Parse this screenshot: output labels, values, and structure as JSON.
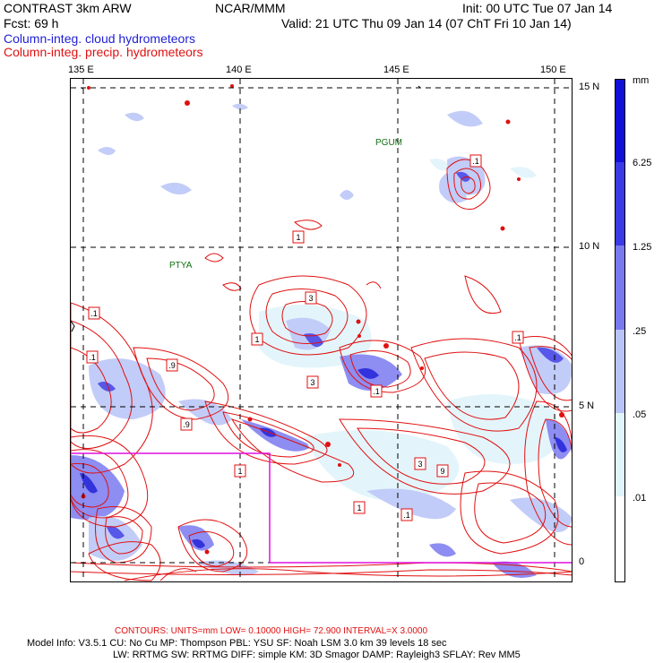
{
  "header": {
    "model": "CONTRAST  3km ARW",
    "center": "NCAR/MMM",
    "init": "Init: 00 UTC Tue 07 Jan 14",
    "fcst": "Fcst:   69 h",
    "valid": "Valid: 21 UTC Thu 09 Jan 14 (07 ChT Fri 10 Jan 14)",
    "field1": "Column-integ. cloud hydrometeors",
    "field2": "Column-integ. precip. hydrometeors"
  },
  "axes": {
    "lon_labels": [
      "135 E",
      "140 E",
      "145 E",
      "150 E"
    ],
    "lat_labels": [
      "15 N",
      "10 N",
      "5 N",
      "0"
    ]
  },
  "places": [
    {
      "name": "PGUM"
    },
    {
      "name": "PTYA"
    }
  ],
  "colorbar": {
    "unit": "mm",
    "levels": [
      "6.25",
      "1.25",
      ".25",
      ".05",
      ".01"
    ],
    "colors": [
      "#1010d8",
      "#3a3ae6",
      "#7a7af0",
      "#b8c4f7",
      "#dff4fb",
      "#ffffff"
    ]
  },
  "contour_labels": [
    ".1",
    "1",
    "3",
    ".9",
    ".1",
    "1",
    "3",
    ".9",
    "1",
    ".1",
    ".1",
    "3",
    "9",
    ".1",
    ".1",
    "1"
  ],
  "footer": {
    "contours": "CONTOURS:  UNITS=mm  LOW=  0.10000      HIGH=  72.900      INTERVAL=X  3.0000",
    "info1": "Model Info: V3.5.1     CU: No Cu       MP: Thompson     PBL: YSU        SF: Noah LSM      3.0 km   39 levels    18 sec",
    "info2": "LW: RRTMG    SW: RRTMG   DIFF: simple KM: 3D Smagor DAMP: Rayleigh3  SFLAY: Rev MM5"
  },
  "colors": {
    "contour": "#e01010",
    "box": "#e010e0",
    "grid": "#000000",
    "place": "#107010"
  }
}
